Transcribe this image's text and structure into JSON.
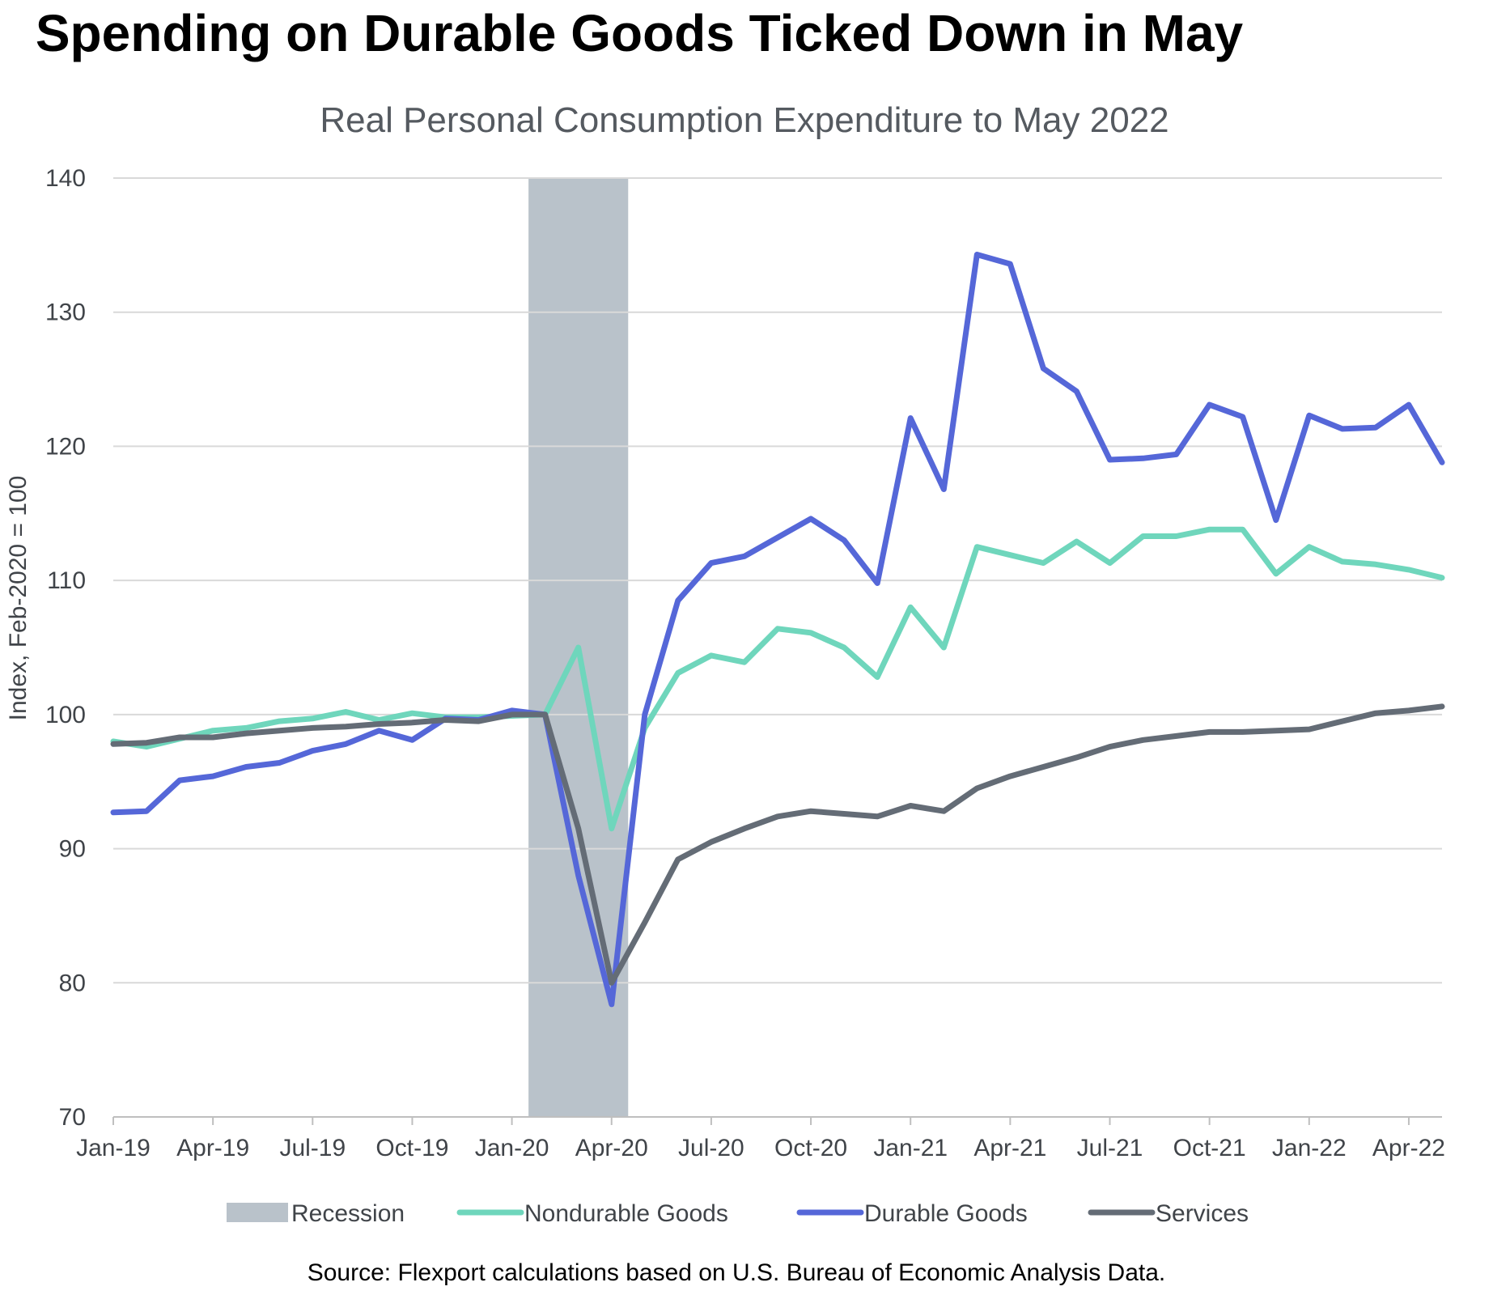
{
  "chart_data": {
    "type": "line",
    "title": "Spending on Durable Goods Ticked Down in May",
    "subtitle": "Real Personal Consumption Expenditure to May 2022",
    "ylabel": "Index, Feb-2020 = 100",
    "xlabel": "",
    "ylim": [
      70,
      140
    ],
    "yticks": [
      70,
      80,
      90,
      100,
      110,
      120,
      130,
      140
    ],
    "months": [
      "Jan-19",
      "Feb-19",
      "Mar-19",
      "Apr-19",
      "May-19",
      "Jun-19",
      "Jul-19",
      "Aug-19",
      "Sep-19",
      "Oct-19",
      "Nov-19",
      "Dec-19",
      "Jan-20",
      "Feb-20",
      "Mar-20",
      "Apr-20",
      "May-20",
      "Jun-20",
      "Jul-20",
      "Aug-20",
      "Sep-20",
      "Oct-20",
      "Nov-20",
      "Dec-20",
      "Jan-21",
      "Feb-21",
      "Mar-21",
      "Apr-21",
      "May-21",
      "Jun-21",
      "Jul-21",
      "Aug-21",
      "Sep-21",
      "Oct-21",
      "Nov-21",
      "Dec-21",
      "Jan-22",
      "Feb-22",
      "Mar-22",
      "Apr-22",
      "May-22"
    ],
    "xtick_labels": [
      "Jan-19",
      "Apr-19",
      "Jul-19",
      "Oct-19",
      "Jan-20",
      "Apr-20",
      "Jul-20",
      "Oct-20",
      "Jan-21",
      "Apr-21",
      "Jul-21",
      "Oct-21",
      "Jan-22",
      "Apr-22"
    ],
    "xtick_indices": [
      0,
      3,
      6,
      9,
      12,
      15,
      18,
      21,
      24,
      27,
      30,
      33,
      36,
      39
    ],
    "recession": {
      "name": "Recession",
      "start": 12.5,
      "end": 15.5,
      "color": "#b9c2ca"
    },
    "series": [
      {
        "name": "Nondurable Goods",
        "color": "#6fd6bc",
        "values": [
          98.0,
          97.6,
          98.2,
          98.8,
          99.0,
          99.5,
          99.7,
          100.2,
          99.6,
          100.1,
          99.8,
          99.8,
          99.9,
          100.0,
          105.0,
          91.5,
          99.0,
          103.1,
          104.4,
          103.9,
          106.4,
          106.1,
          105.0,
          102.8,
          108.0,
          105.0,
          112.5,
          111.9,
          111.3,
          112.9,
          111.3,
          113.3,
          113.3,
          113.8,
          113.8,
          110.5,
          112.5,
          111.4,
          111.2,
          110.8,
          110.2
        ]
      },
      {
        "name": "Durable Goods",
        "color": "#5567d8",
        "values": [
          92.7,
          92.8,
          95.1,
          95.4,
          96.1,
          96.4,
          97.3,
          97.8,
          98.8,
          98.1,
          99.7,
          99.6,
          100.3,
          100.0,
          88.0,
          78.4,
          100.0,
          108.5,
          111.3,
          111.8,
          113.2,
          114.6,
          113.0,
          109.8,
          122.1,
          116.8,
          134.3,
          133.6,
          125.8,
          124.1,
          119.0,
          119.1,
          119.4,
          123.1,
          122.2,
          114.5,
          122.3,
          121.3,
          121.4,
          123.1,
          118.8
        ]
      },
      {
        "name": "Services",
        "color": "#646c76",
        "values": [
          97.8,
          97.9,
          98.3,
          98.3,
          98.6,
          98.8,
          99.0,
          99.1,
          99.3,
          99.4,
          99.6,
          99.5,
          100.0,
          100.0,
          91.5,
          80.0,
          84.5,
          89.2,
          90.5,
          91.5,
          92.4,
          92.8,
          92.6,
          92.4,
          93.2,
          92.8,
          94.5,
          95.4,
          96.1,
          96.8,
          97.6,
          98.1,
          98.4,
          98.7,
          98.7,
          98.8,
          98.9,
          99.5,
          100.1,
          100.3,
          100.6
        ]
      }
    ],
    "legend": {
      "position": "bottom",
      "items": [
        {
          "name": "Recession",
          "kind": "box",
          "color": "#b9c2ca"
        },
        {
          "name": "Nondurable Goods",
          "kind": "line",
          "color": "#6fd6bc"
        },
        {
          "name": "Durable Goods",
          "kind": "line",
          "color": "#5567d8"
        },
        {
          "name": "Services",
          "kind": "line",
          "color": "#646c76"
        }
      ]
    },
    "source": "Source: Flexport calculations based on U.S. Bureau of Economic Analysis Data."
  }
}
